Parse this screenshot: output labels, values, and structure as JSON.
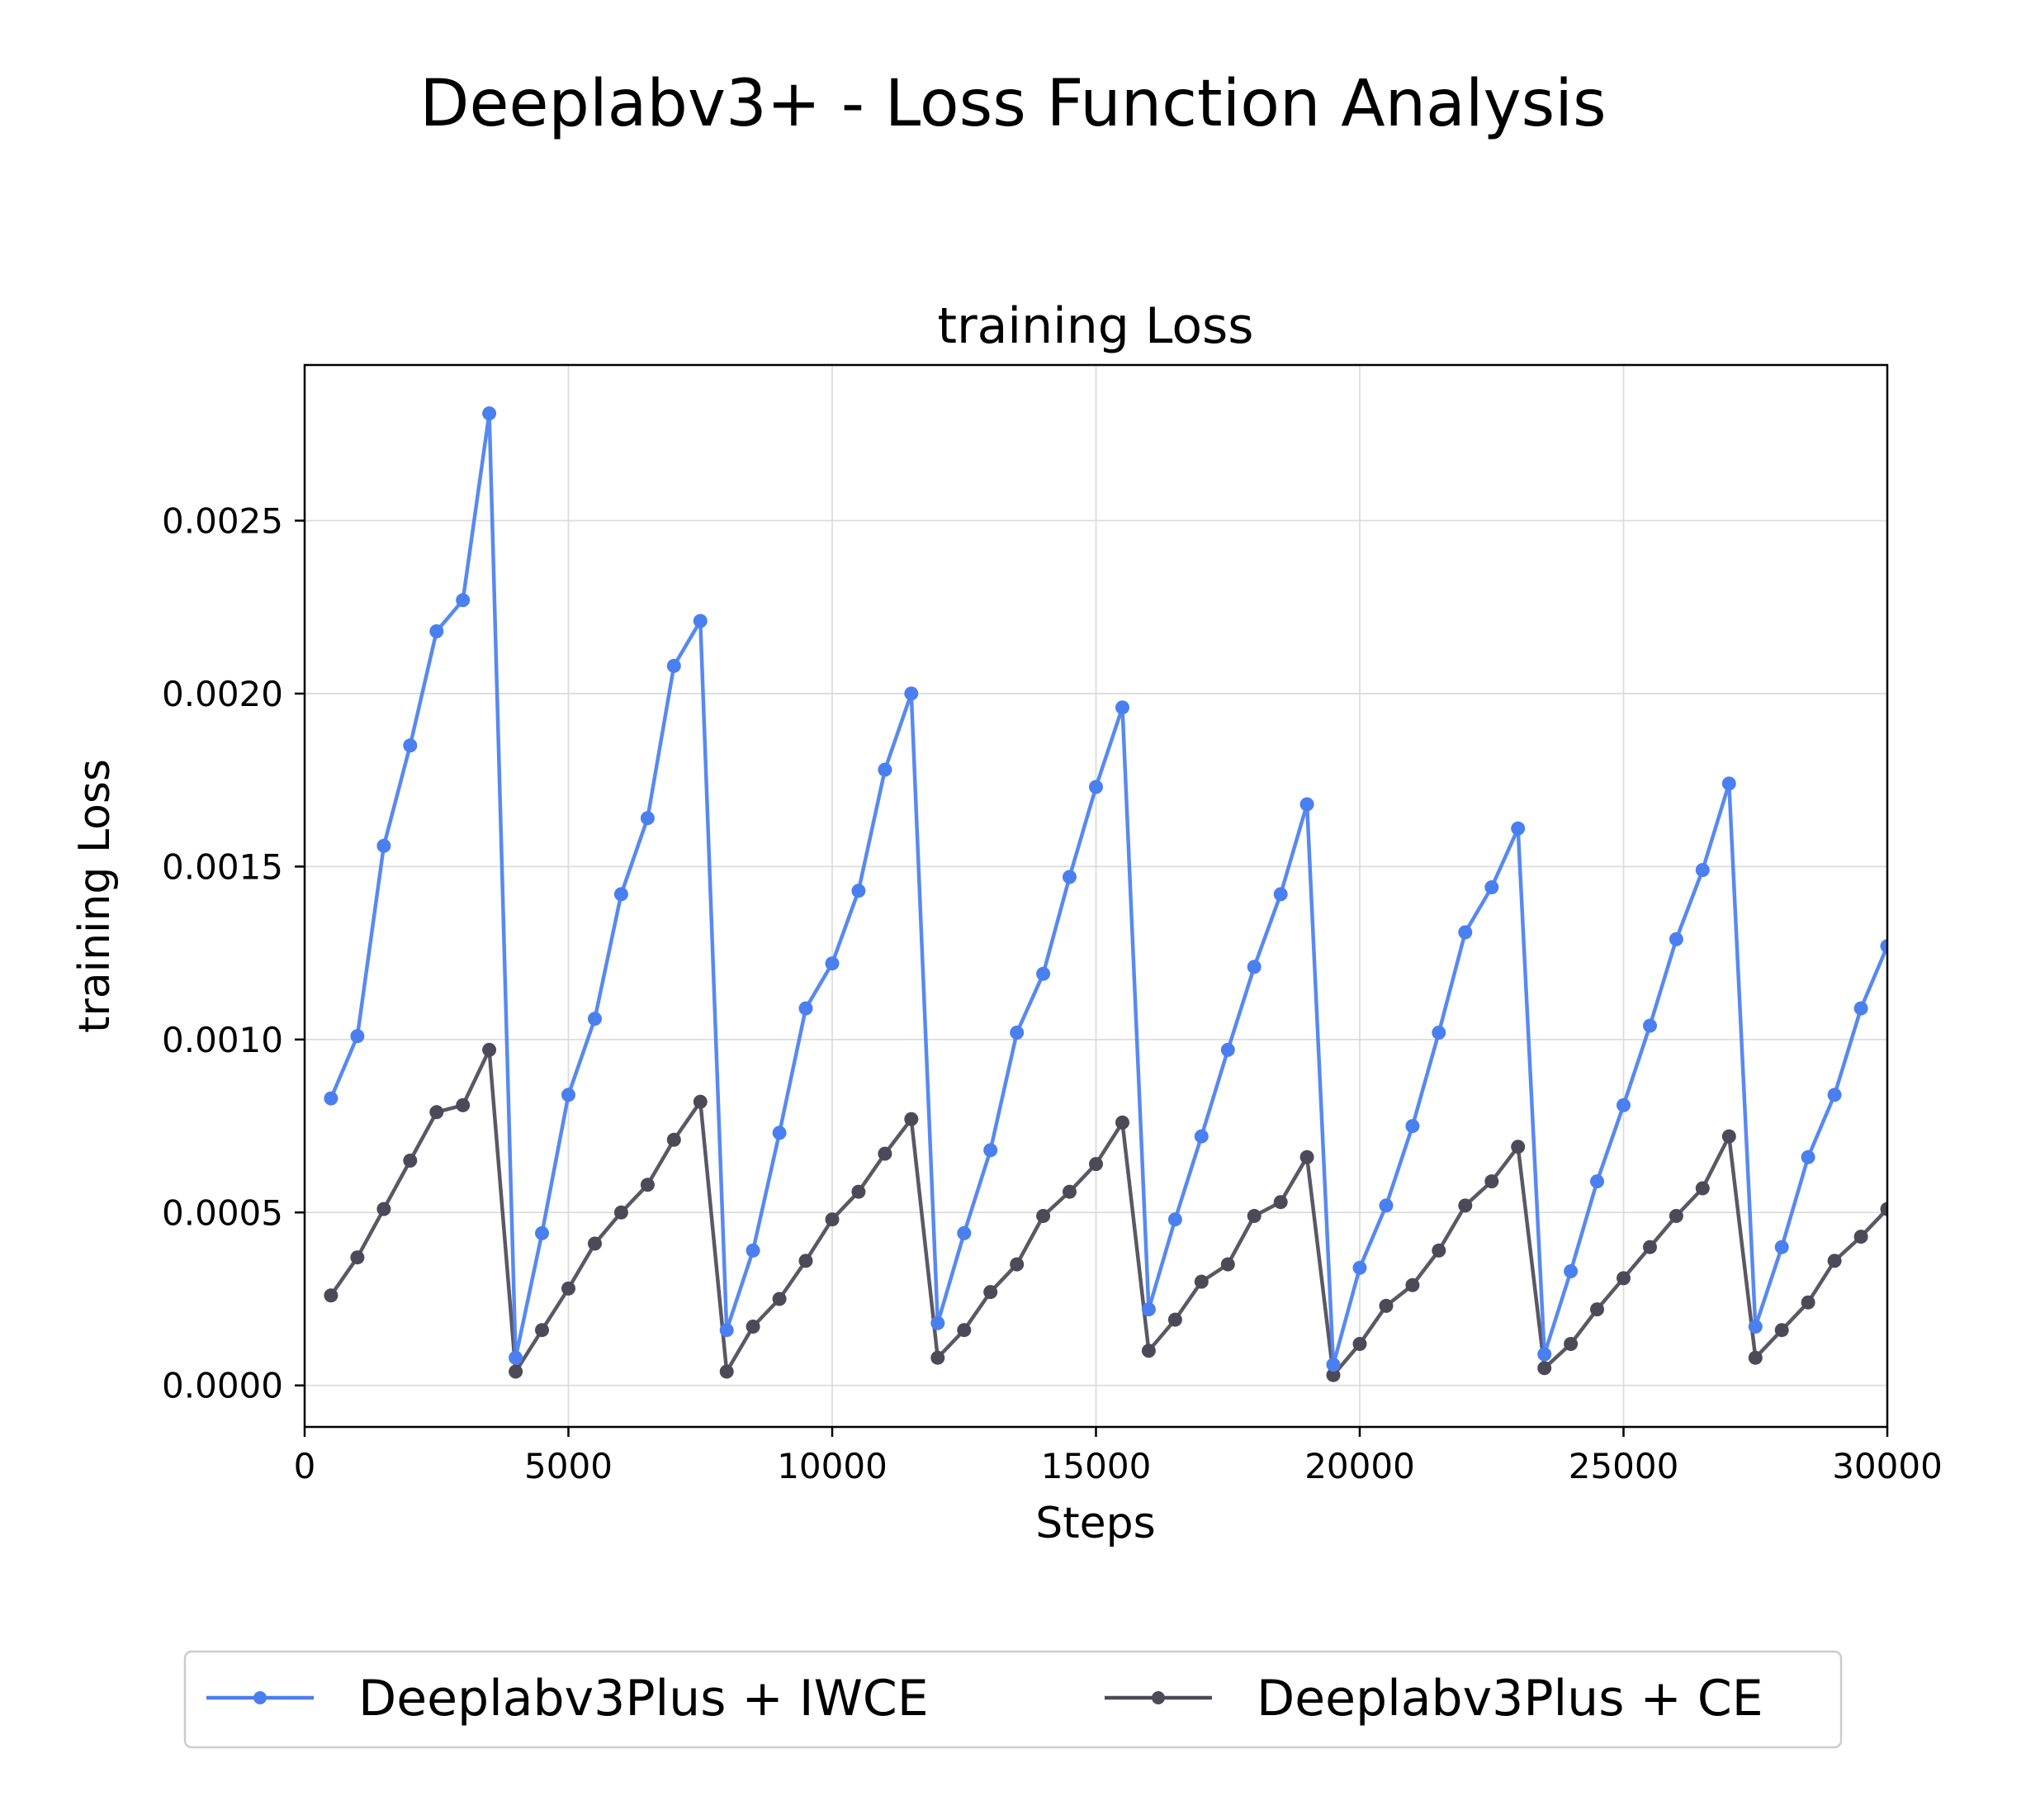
{
  "figure": {
    "suptitle": "Deeplabv3+ - Loss Function Analysis"
  },
  "chart_data": {
    "type": "line",
    "title": "training Loss",
    "xlabel": "Steps",
    "ylabel": "training Loss",
    "xlim": [
      0,
      30000
    ],
    "ylim": [
      -0.00012,
      0.00295
    ],
    "xticks": [
      0,
      5000,
      10000,
      15000,
      20000,
      25000,
      30000
    ],
    "xtick_labels": [
      "0",
      "5000",
      "10000",
      "15000",
      "20000",
      "25000",
      "30000"
    ],
    "yticks": [
      0,
      0.0005,
      0.001,
      0.0015,
      0.002,
      0.0025
    ],
    "ytick_labels": [
      "0.0000",
      "0.0005",
      "0.0010",
      "0.0015",
      "0.0020",
      "0.0025"
    ],
    "grid": true,
    "legend_position": "bottom-center",
    "x": [
      500,
      1000,
      1500,
      2000,
      2500,
      3000,
      3500,
      4000,
      4500,
      5000,
      5500,
      6000,
      6500,
      7000,
      7500,
      8000,
      8500,
      9000,
      9500,
      10000,
      10500,
      11000,
      11500,
      12000,
      12500,
      13000,
      13500,
      14000,
      14500,
      15000,
      15500,
      16000,
      16500,
      17000,
      17500,
      18000,
      18500,
      19000,
      19500,
      20000,
      20500,
      21000,
      21500,
      22000,
      22500,
      23000,
      23500,
      24000,
      24500,
      25000,
      25500,
      26000,
      26500,
      27000,
      27500,
      28000,
      28500,
      29000,
      29500,
      30000
    ],
    "series": [
      {
        "name": "Deeplabv3Plus + IWCE",
        "color": "#4a7ff0",
        "values": [
          0.00083,
          0.00101,
          0.00156,
          0.00185,
          0.00218,
          0.00227,
          0.00281,
          8e-05,
          0.00044,
          0.00084,
          0.00106,
          0.00142,
          0.00164,
          0.00208,
          0.00221,
          0.00016,
          0.00039,
          0.00073,
          0.00109,
          0.00122,
          0.00143,
          0.00178,
          0.002,
          0.00018,
          0.00044,
          0.00068,
          0.00102,
          0.00119,
          0.00147,
          0.00173,
          0.00196,
          0.00022,
          0.00048,
          0.00072,
          0.00097,
          0.00121,
          0.00142,
          0.00168,
          6e-05,
          0.00034,
          0.00052,
          0.00075,
          0.00102,
          0.00131,
          0.00144,
          0.00161,
          9e-05,
          0.00033,
          0.00059,
          0.00081,
          0.00104,
          0.00129,
          0.00149,
          0.00174,
          0.00017,
          0.0004,
          0.00066,
          0.00084,
          0.00109,
          0.00127
        ]
      },
      {
        "name": "Deeplabv3Plus + CE",
        "color": "#4d4a58",
        "values": [
          0.00026,
          0.00037,
          0.00051,
          0.00065,
          0.00079,
          0.00081,
          0.00097,
          4e-05,
          0.00016,
          0.00028,
          0.00041,
          0.0005,
          0.00058,
          0.00071,
          0.00082,
          4e-05,
          0.00017,
          0.00025,
          0.00036,
          0.00048,
          0.00056,
          0.00067,
          0.00077,
          8e-05,
          0.00016,
          0.00027,
          0.00035,
          0.00049,
          0.00056,
          0.00064,
          0.00076,
          0.0001,
          0.00019,
          0.0003,
          0.00035,
          0.00049,
          0.00053,
          0.00066,
          3e-05,
          0.00012,
          0.00023,
          0.00029,
          0.00039,
          0.00052,
          0.00059,
          0.00069,
          5e-05,
          0.00012,
          0.00022,
          0.00031,
          0.0004,
          0.00049,
          0.00057,
          0.00072,
          8e-05,
          0.00016,
          0.00024,
          0.00036,
          0.00043,
          0.00051
        ]
      }
    ]
  }
}
